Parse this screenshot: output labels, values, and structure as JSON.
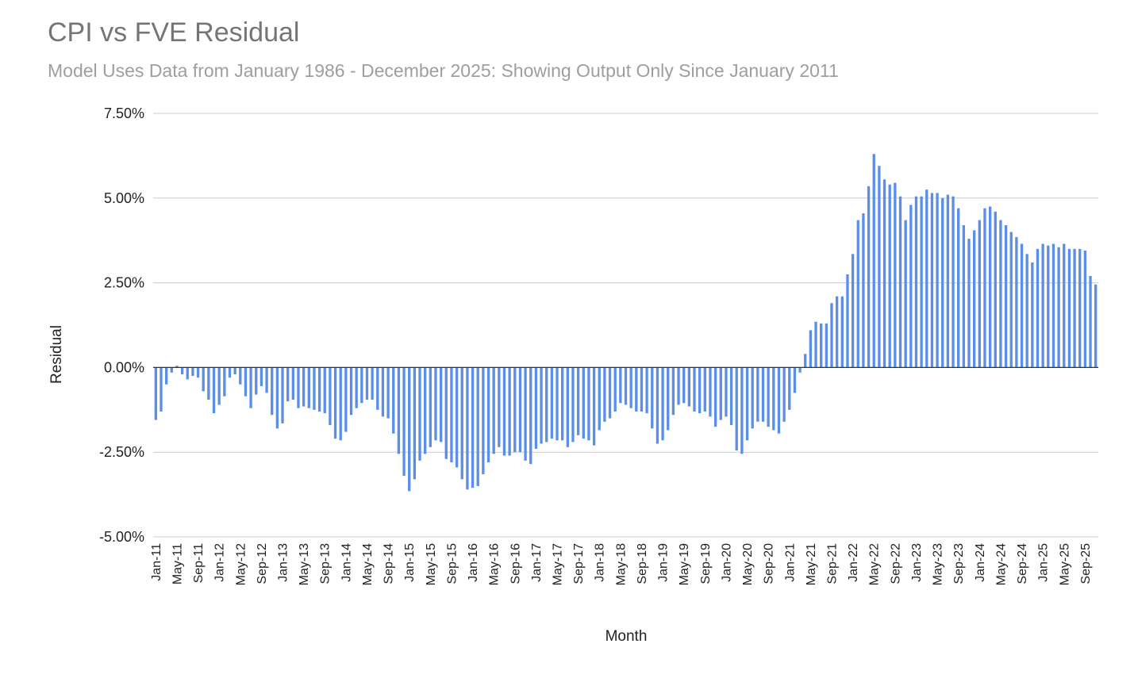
{
  "header": {
    "title": "CPI vs FVE Residual",
    "subtitle": "Model Uses Data from January 1986 - December 2025: Showing Output Only Since January 2011"
  },
  "chart_data": {
    "type": "bar",
    "title": "CPI vs FVE Residual",
    "subtitle": "Model Uses Data from January 1986 - December 2025: Showing Output Only Since January 2011",
    "xlabel": "Month",
    "ylabel": "Residual",
    "ylim": [
      -5.0,
      7.5
    ],
    "y_ticks": [
      "7.50%",
      "5.00%",
      "2.50%",
      "0.00%",
      "-2.50%",
      "-5.00%"
    ],
    "x_tick_labels": [
      "Jan-11",
      "May-11",
      "Sep-11",
      "Jan-12",
      "May-12",
      "Sep-12",
      "Jan-13",
      "May-13",
      "Sep-13",
      "Jan-14",
      "May-14",
      "Sep-14",
      "Jan-15",
      "May-15",
      "Sep-15",
      "Jan-16",
      "May-16",
      "Sep-16",
      "Jan-17",
      "May-17",
      "Sep-17",
      "Jan-18",
      "May-18",
      "Sep-18",
      "Jan-19",
      "May-19",
      "Sep-19",
      "Jan-20",
      "May-20",
      "Sep-20",
      "Jan-21",
      "May-21",
      "Sep-21",
      "Jan-22",
      "May-22",
      "Sep-22",
      "Jan-23",
      "May-23",
      "Sep-23",
      "Jan-24",
      "May-24",
      "Sep-24",
      "Jan-25",
      "May-25",
      "Sep-25"
    ],
    "start": "Jan-11",
    "units": "percent",
    "grid": true,
    "bar_color": "#5b8ee6",
    "values": [
      -1.55,
      -1.3,
      -0.5,
      -0.15,
      0.05,
      -0.2,
      -0.35,
      -0.25,
      -0.3,
      -0.7,
      -0.95,
      -1.35,
      -1.1,
      -0.85,
      -0.3,
      -0.2,
      -0.5,
      -0.85,
      -1.2,
      -0.8,
      -0.55,
      -0.75,
      -1.4,
      -1.8,
      -1.65,
      -1.0,
      -0.95,
      -1.2,
      -1.15,
      -1.2,
      -1.25,
      -1.3,
      -1.35,
      -1.7,
      -2.1,
      -2.15,
      -1.9,
      -1.4,
      -1.2,
      -1.05,
      -0.95,
      -0.95,
      -1.25,
      -1.45,
      -1.5,
      -1.95,
      -2.55,
      -3.2,
      -3.65,
      -3.3,
      -2.75,
      -2.55,
      -2.35,
      -2.15,
      -2.2,
      -2.7,
      -2.8,
      -2.95,
      -3.3,
      -3.6,
      -3.55,
      -3.5,
      -3.15,
      -2.8,
      -2.55,
      -2.35,
      -2.6,
      -2.6,
      -2.5,
      -2.5,
      -2.75,
      -2.85,
      -2.4,
      -2.25,
      -2.2,
      -2.1,
      -2.15,
      -2.15,
      -2.35,
      -2.2,
      -2.0,
      -2.1,
      -2.15,
      -2.3,
      -1.85,
      -1.6,
      -1.5,
      -1.3,
      -1.05,
      -1.1,
      -1.2,
      -1.3,
      -1.3,
      -1.35,
      -1.8,
      -2.25,
      -2.15,
      -1.85,
      -1.4,
      -1.1,
      -1.05,
      -1.15,
      -1.3,
      -1.35,
      -1.3,
      -1.45,
      -1.75,
      -1.55,
      -1.45,
      -1.7,
      -2.45,
      -2.55,
      -2.15,
      -1.8,
      -1.6,
      -1.6,
      -1.75,
      -1.85,
      -1.95,
      -1.6,
      -1.25,
      -0.75,
      -0.15,
      0.4,
      1.1,
      1.35,
      1.3,
      1.3,
      1.9,
      2.1,
      2.1,
      2.75,
      3.35,
      4.35,
      4.55,
      5.35,
      6.3,
      5.95,
      5.55,
      5.4,
      5.45,
      5.05,
      4.35,
      4.8,
      5.05,
      5.05,
      5.25,
      5.15,
      5.15,
      5.0,
      5.1,
      5.05,
      4.7,
      4.2,
      3.8,
      4.05,
      4.35,
      4.7,
      4.75,
      4.6,
      4.35,
      4.2,
      4.0,
      3.85,
      3.65,
      3.35,
      3.1,
      3.5,
      3.65,
      3.6,
      3.65,
      3.55,
      3.65,
      3.5,
      3.5,
      3.5,
      3.45,
      2.7,
      2.45
    ]
  }
}
